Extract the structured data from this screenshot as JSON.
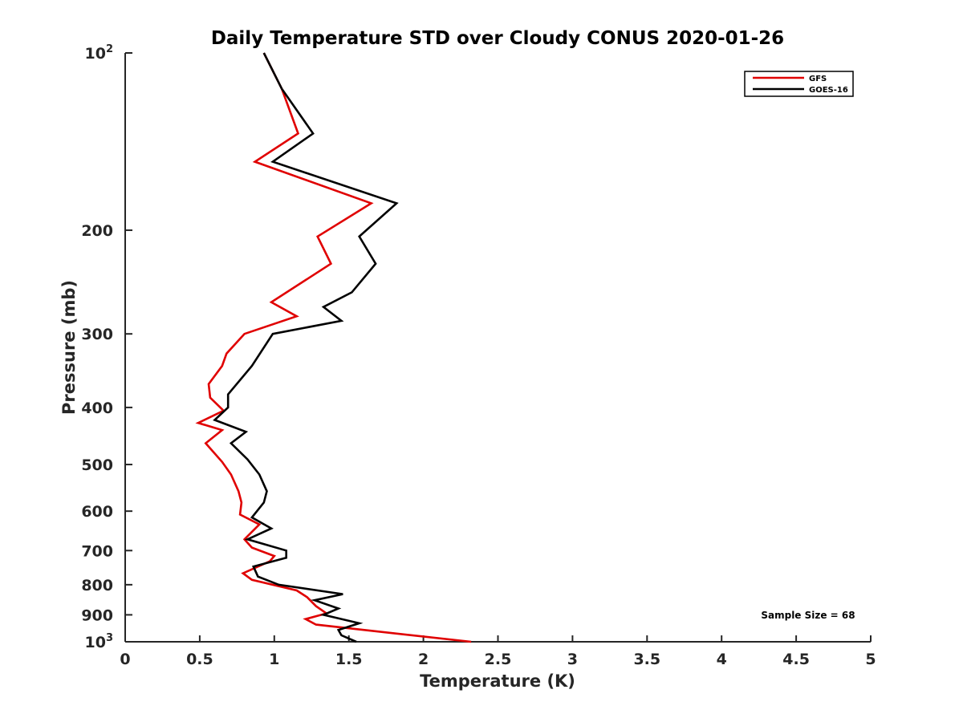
{
  "chart_data": {
    "type": "line",
    "title": "Daily Temperature STD over Cloudy CONUS 2020-01-26",
    "xlabel": "Temperature (K)",
    "ylabel": "Pressure (mb)",
    "xlim": [
      0,
      5
    ],
    "ylim": [
      100,
      1000
    ],
    "y_scale": "log",
    "y_reversed": true,
    "x_ticks": [
      "0",
      "0.5",
      "1",
      "1.5",
      "2",
      "2.5",
      "3",
      "3.5",
      "4",
      "4.5",
      "5"
    ],
    "y_ticks": [
      {
        "value": 100,
        "base": "10",
        "exp": "2"
      },
      {
        "value": 200,
        "label": "200"
      },
      {
        "value": 300,
        "label": "300"
      },
      {
        "value": 400,
        "label": "400"
      },
      {
        "value": 500,
        "label": "500"
      },
      {
        "value": 600,
        "label": "600"
      },
      {
        "value": 700,
        "label": "700"
      },
      {
        "value": 800,
        "label": "800"
      },
      {
        "value": 900,
        "label": "900"
      },
      {
        "value": 1000,
        "base": "10",
        "exp": "3"
      }
    ],
    "legend_position": "top-right",
    "grid": false,
    "annotation": "Sample Size = 68",
    "series": [
      {
        "name": "GFS",
        "color": "#e00000",
        "points": [
          [
            0.93,
            100
          ],
          [
            1.05,
            115
          ],
          [
            1.16,
            137
          ],
          [
            0.87,
            153
          ],
          [
            1.65,
            180
          ],
          [
            1.29,
            205
          ],
          [
            1.38,
            228
          ],
          [
            0.98,
            265
          ],
          [
            1.15,
            280
          ],
          [
            0.8,
            300
          ],
          [
            0.68,
            324
          ],
          [
            0.65,
            340
          ],
          [
            0.56,
            365
          ],
          [
            0.57,
            385
          ],
          [
            0.66,
            405
          ],
          [
            0.49,
            425
          ],
          [
            0.65,
            437
          ],
          [
            0.54,
            460
          ],
          [
            0.65,
            495
          ],
          [
            0.71,
            520
          ],
          [
            0.76,
            555
          ],
          [
            0.78,
            580
          ],
          [
            0.77,
            608
          ],
          [
            0.9,
            632
          ],
          [
            0.8,
            670
          ],
          [
            0.85,
            692
          ],
          [
            1.0,
            715
          ],
          [
            0.97,
            730
          ],
          [
            0.79,
            765
          ],
          [
            0.85,
            785
          ],
          [
            1.15,
            818
          ],
          [
            1.22,
            840
          ],
          [
            1.28,
            870
          ],
          [
            1.35,
            895
          ],
          [
            1.21,
            915
          ],
          [
            1.28,
            935
          ],
          [
            1.52,
            950
          ],
          [
            2.32,
            1000
          ]
        ]
      },
      {
        "name": "GOES-16",
        "color": "#000000",
        "points": [
          [
            0.93,
            100
          ],
          [
            1.05,
            115
          ],
          [
            1.26,
            137
          ],
          [
            0.99,
            153
          ],
          [
            1.82,
            180
          ],
          [
            1.57,
            205
          ],
          [
            1.68,
            228
          ],
          [
            1.52,
            255
          ],
          [
            1.33,
            270
          ],
          [
            1.45,
            285
          ],
          [
            0.99,
            300
          ],
          [
            0.85,
            340
          ],
          [
            0.69,
            380
          ],
          [
            0.69,
            400
          ],
          [
            0.6,
            420
          ],
          [
            0.81,
            440
          ],
          [
            0.71,
            460
          ],
          [
            0.82,
            490
          ],
          [
            0.9,
            520
          ],
          [
            0.95,
            555
          ],
          [
            0.93,
            580
          ],
          [
            0.85,
            615
          ],
          [
            0.98,
            642
          ],
          [
            0.82,
            670
          ],
          [
            1.08,
            700
          ],
          [
            1.08,
            720
          ],
          [
            0.86,
            745
          ],
          [
            0.89,
            775
          ],
          [
            1.03,
            800
          ],
          [
            1.46,
            830
          ],
          [
            1.27,
            850
          ],
          [
            1.43,
            878
          ],
          [
            1.33,
            900
          ],
          [
            1.57,
            930
          ],
          [
            1.43,
            955
          ],
          [
            1.45,
            975
          ],
          [
            1.55,
            1000
          ]
        ]
      }
    ]
  }
}
